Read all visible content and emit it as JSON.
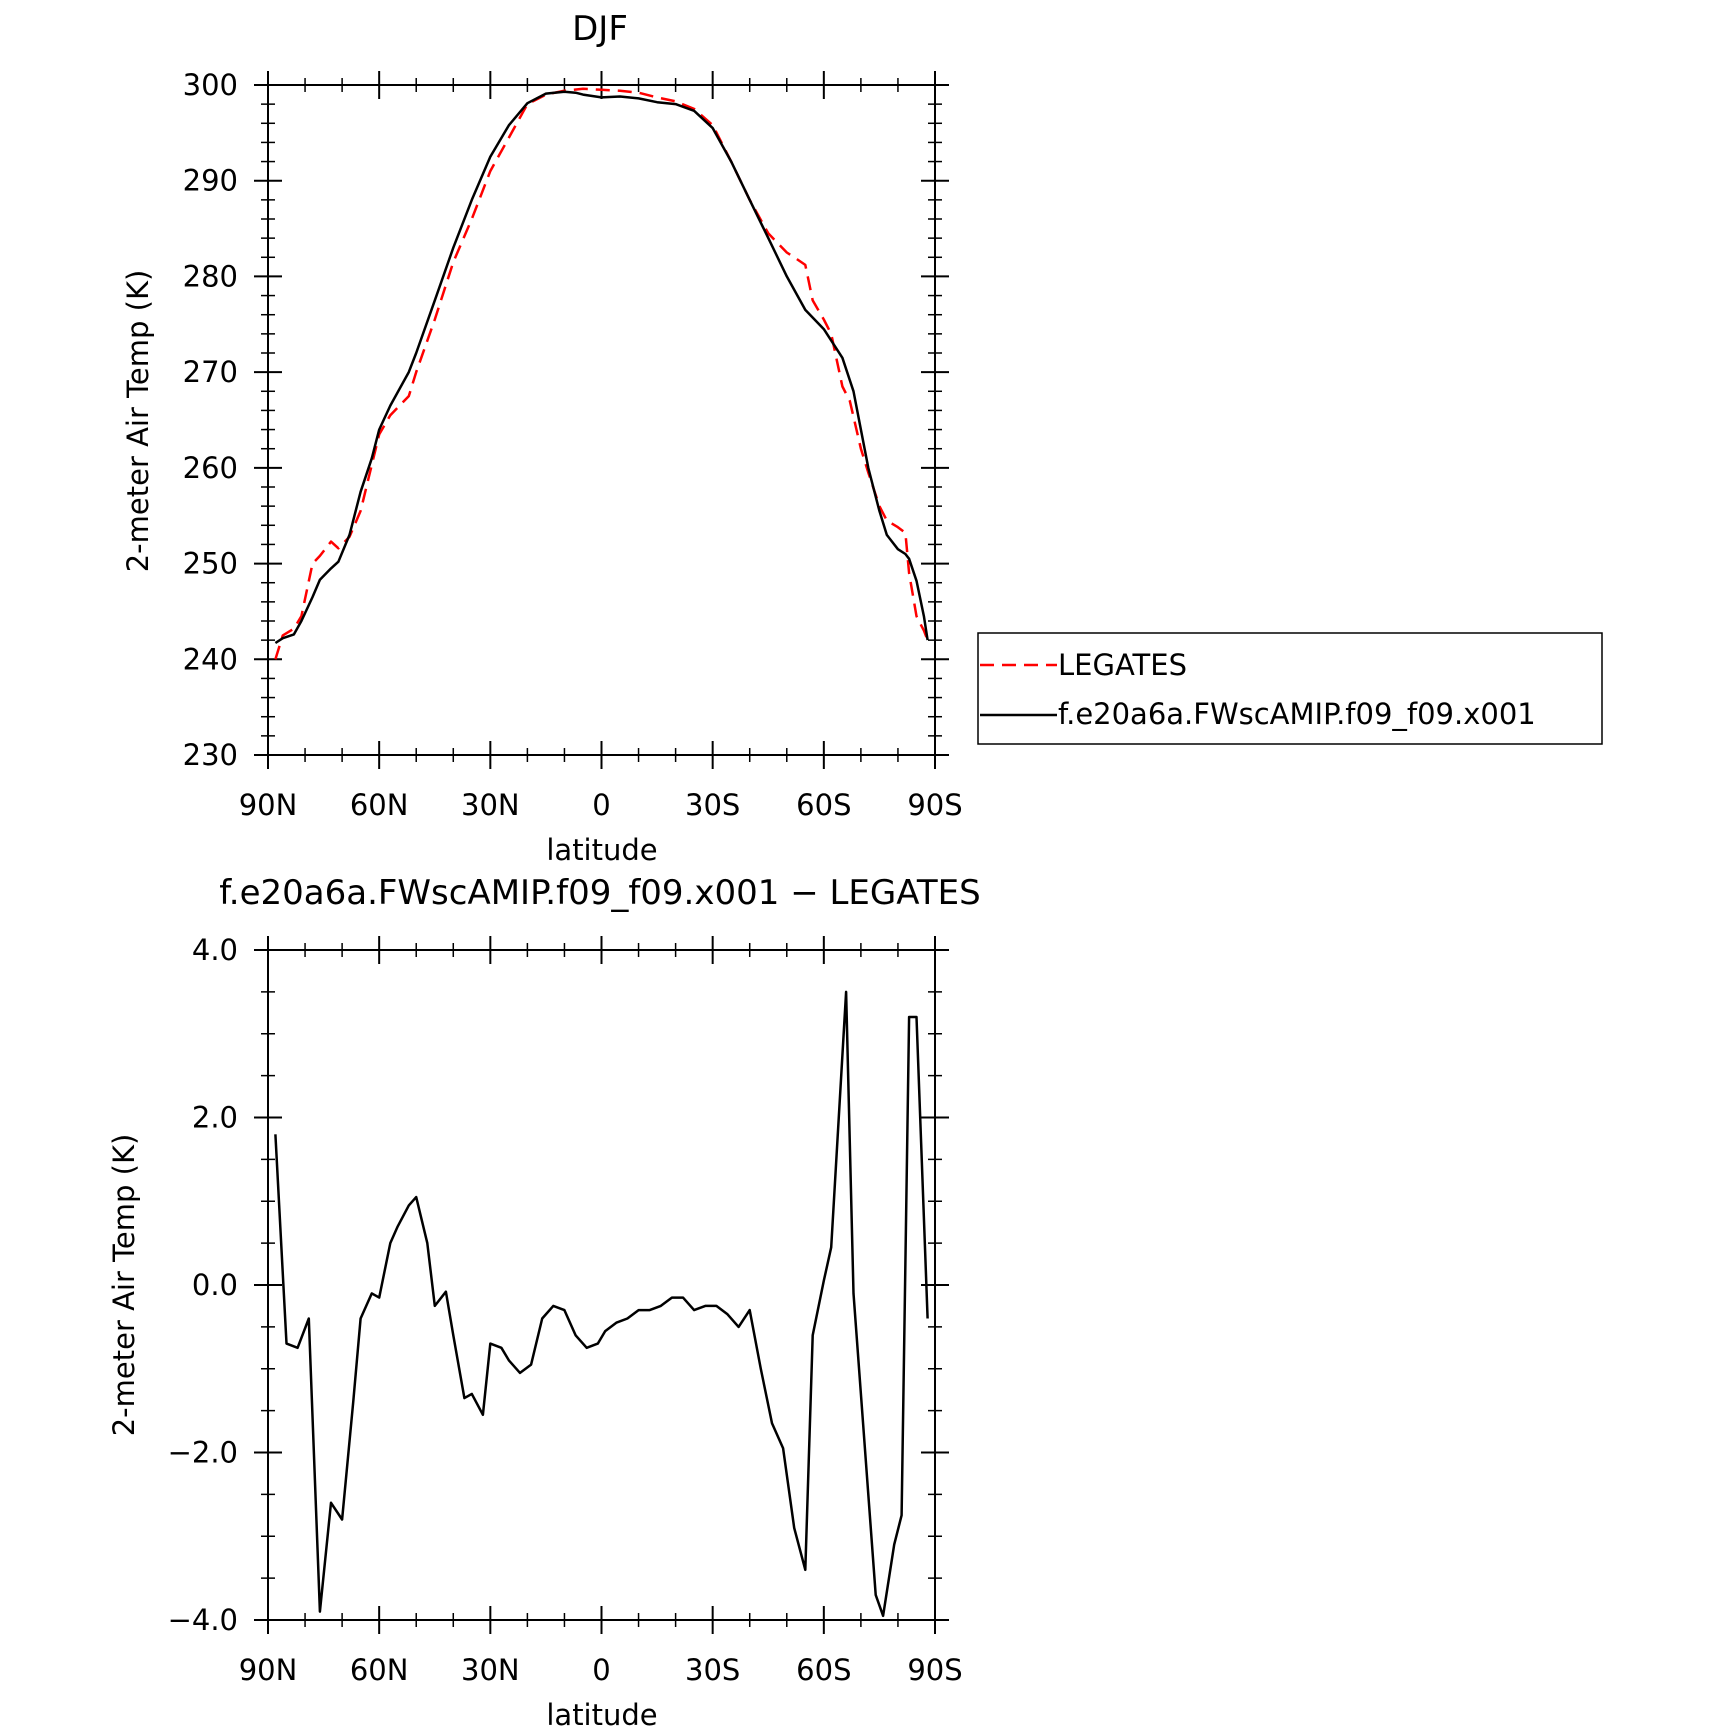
{
  "chart_data": [
    {
      "type": "line",
      "title": "DJF",
      "xlabel": "latitude",
      "ylabel": "2-meter Air Temp (K)",
      "xlim": [
        -90,
        90
      ],
      "ylim": [
        230,
        300
      ],
      "x_ticks": [
        -90,
        -60,
        -30,
        0,
        30,
        60,
        90
      ],
      "x_tick_labels": [
        "90N",
        "60N",
        "30N",
        "0",
        "30S",
        "60S",
        "90S"
      ],
      "y_ticks": [
        230,
        240,
        250,
        260,
        270,
        280,
        290,
        300
      ],
      "y_tick_labels": [
        "230",
        "240",
        "250",
        "260",
        "270",
        "280",
        "290",
        "300"
      ],
      "legend_placement": "right",
      "series": [
        {
          "name": "LEGATES",
          "color": "#ff0000",
          "dash": "dashed",
          "x": [
            -88,
            -86,
            -83,
            -81,
            -78,
            -76,
            -73,
            -71,
            -68,
            -65,
            -60,
            -57,
            -52,
            -50,
            -45,
            -40,
            -35,
            -30,
            -25,
            -20,
            -15,
            -10,
            -5,
            0,
            5,
            10,
            15,
            20,
            25,
            30,
            35,
            40,
            45,
            50,
            52,
            55,
            57,
            60,
            62,
            65,
            67,
            70,
            72,
            75,
            77,
            80,
            82,
            83,
            85,
            87,
            88
          ],
          "y": [
            240,
            242.5,
            243.2,
            244.5,
            250,
            250.8,
            252.3,
            251.6,
            252.8,
            255.5,
            263.5,
            265.5,
            267.5,
            270,
            275.5,
            281.5,
            286,
            291,
            294.5,
            298,
            299,
            299.4,
            299.6,
            299.5,
            299.4,
            299.2,
            298.7,
            298.3,
            297.5,
            295.8,
            292,
            288,
            284.5,
            282.5,
            282,
            281.2,
            277.5,
            275.5,
            274,
            268.5,
            267,
            262,
            259.5,
            256,
            254.5,
            253.8,
            253.2,
            249,
            244.5,
            243,
            242
          ]
        },
        {
          "name": "f.e20a6a.FWscAMIP.f09_f09.x001",
          "color": "#000000",
          "dash": "solid",
          "x": [
            -88,
            -86,
            -83,
            -81,
            -78,
            -76,
            -73,
            -71,
            -68,
            -65,
            -62,
            -60,
            -57,
            -52,
            -50,
            -45,
            -40,
            -35,
            -30,
            -25,
            -20,
            -15,
            -10,
            -7,
            -5,
            0,
            5,
            10,
            15,
            20,
            25,
            30,
            35,
            40,
            45,
            50,
            55,
            60,
            65,
            68,
            70,
            72,
            75,
            77,
            80,
            82,
            83,
            85,
            87,
            88
          ],
          "y": [
            241.7,
            242.2,
            242.6,
            244,
            246.5,
            248.3,
            249.5,
            250.2,
            253,
            257.5,
            261,
            264,
            266.5,
            270,
            272,
            277.5,
            283,
            288,
            292.5,
            295.8,
            298.1,
            299.1,
            299.3,
            299.2,
            299,
            298.7,
            298.8,
            298.6,
            298.2,
            298,
            297.3,
            295.5,
            292,
            288,
            284,
            280,
            276.5,
            274.5,
            271.5,
            268,
            264,
            260,
            255.5,
            253,
            251.5,
            251,
            250.5,
            248.2,
            244.5,
            242
          ]
        }
      ]
    },
    {
      "type": "line",
      "title": "f.e20a6a.FWscAMIP.f09_f09.x001 − LEGATES",
      "xlabel": "latitude",
      "ylabel": "2-meter Air Temp (K)",
      "xlim": [
        -90,
        90
      ],
      "ylim": [
        -4,
        4
      ],
      "x_ticks": [
        -90,
        -60,
        -30,
        0,
        30,
        60,
        90
      ],
      "x_tick_labels": [
        "90N",
        "60N",
        "30N",
        "0",
        "30S",
        "60S",
        "90S"
      ],
      "y_ticks": [
        -4,
        -2,
        0,
        2,
        4
      ],
      "y_tick_labels": [
        "−4.0",
        "−2.0",
        "0.0",
        "2.0",
        "4.0"
      ],
      "series": [
        {
          "color": "#000000",
          "dash": "solid",
          "x": [
            -88,
            -85,
            -82,
            -79,
            -76,
            -73,
            -70,
            -67,
            -65,
            -62,
            -60,
            -57,
            -55,
            -52,
            -50,
            -47,
            -45,
            -42,
            -40,
            -37,
            -35,
            -32,
            -30,
            -27,
            -25,
            -22,
            -19,
            -16,
            -13,
            -10,
            -7,
            -4,
            -1,
            1,
            4,
            7,
            10,
            13,
            16,
            19,
            22,
            25,
            28,
            31,
            34,
            37,
            40,
            43,
            46,
            49,
            52,
            55,
            57,
            60,
            62,
            66,
            68,
            74,
            76,
            79,
            81,
            83,
            85,
            88
          ],
          "y": [
            1.8,
            -0.7,
            -0.75,
            -0.4,
            -3.9,
            -2.6,
            -2.8,
            -1.4,
            -0.4,
            -0.1,
            -0.15,
            0.5,
            0.7,
            0.95,
            1.05,
            0.5,
            -0.25,
            -0.08,
            -0.6,
            -1.35,
            -1.3,
            -1.55,
            -0.7,
            -0.75,
            -0.9,
            -1.05,
            -0.95,
            -0.4,
            -0.25,
            -0.3,
            -0.6,
            -0.75,
            -0.7,
            -0.55,
            -0.45,
            -0.4,
            -0.3,
            -0.3,
            -0.25,
            -0.15,
            -0.15,
            -0.3,
            -0.25,
            -0.25,
            -0.35,
            -0.5,
            -0.3,
            -1.0,
            -1.65,
            -1.95,
            -2.9,
            -3.4,
            -0.6,
            0.05,
            0.45,
            3.5,
            -0.1,
            -3.7,
            -3.95,
            -3.1,
            -2.75,
            3.2,
            3.2,
            -0.4
          ]
        }
      ]
    }
  ]
}
